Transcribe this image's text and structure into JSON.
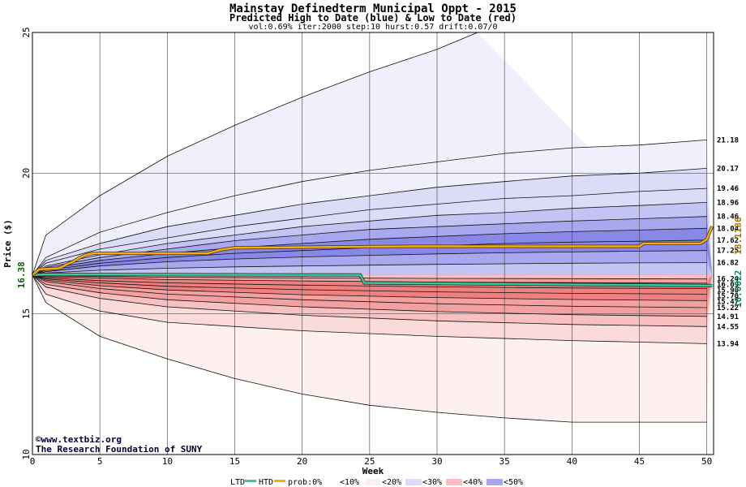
{
  "header": {
    "title": "Mainstay Definedterm Municipal Oppt - 2015",
    "subtitle": "Predicted High to Date (blue) &  Low to Date (red)",
    "params": "vol:0.69% iter:2000 step:10 hurst:0.57 drift:0.07/0"
  },
  "watermark": {
    "line1": "©www.textbiz.org",
    "line2": "The Research Foundation of SUNY"
  },
  "colors": {
    "htd": "#33cc99",
    "ltd": "#ffaa00",
    "ltd_outline": "#333333",
    "blue_band_10": "#f0f0fc",
    "blue_band_20": "#dcdcf8",
    "blue_band_30": "#c4c4f4",
    "blue_band_40": "#a8a8ee",
    "blue_band_50": "#8888e6",
    "red_band_10": "#fdf0ee",
    "red_band_20": "#fbdada",
    "red_band_30": "#f8c0c0",
    "red_band_40": "#f4a0a0",
    "red_band_50": "#ee8080",
    "start_label": "#006600",
    "ltd_label": "#aa7700",
    "htd_label": "#008866"
  },
  "chart_data": {
    "type": "area",
    "title": "Mainstay Definedterm Municipal Oppt - 2015",
    "xlabel": "Week",
    "ylabel": "Price ($)",
    "xlim": [
      0,
      50.5
    ],
    "ylim": [
      10,
      25
    ],
    "x_ticks": [
      0,
      5,
      10,
      15,
      20,
      25,
      30,
      35,
      40,
      45,
      50
    ],
    "y_ticks": [
      10,
      15,
      20,
      25
    ],
    "start_price": 16.38,
    "start_label": "16.38",
    "grid": true,
    "legend_position": "bottom",
    "legend": {
      "ltd": "LTD",
      "htd": "HTD",
      "prob": "prob:0%",
      "b10": "<10%",
      "b20": "<20%",
      "b30": "<30%",
      "b40": "<40%",
      "b50": "<50%"
    },
    "blue_contours": [
      {
        "end": 25.0,
        "p": [
          [
            1,
            17.8
          ],
          [
            5,
            19.2
          ],
          [
            10,
            20.6
          ],
          [
            15,
            21.7
          ],
          [
            20,
            22.7
          ],
          [
            25,
            23.6
          ],
          [
            30,
            24.4
          ],
          [
            33,
            25.0
          ]
        ]
      },
      {
        "end": 21.18,
        "p": [
          [
            1,
            17.0
          ],
          [
            5,
            17.9
          ],
          [
            10,
            18.6
          ],
          [
            15,
            19.2
          ],
          [
            20,
            19.7
          ],
          [
            25,
            20.1
          ],
          [
            30,
            20.4
          ],
          [
            35,
            20.7
          ],
          [
            40,
            20.9
          ],
          [
            45,
            21.0
          ],
          [
            50,
            21.18
          ]
        ]
      },
      {
        "end": 20.17,
        "p": [
          [
            1,
            16.9
          ],
          [
            5,
            17.5
          ],
          [
            10,
            18.1
          ],
          [
            15,
            18.5
          ],
          [
            20,
            18.9
          ],
          [
            25,
            19.2
          ],
          [
            30,
            19.5
          ],
          [
            35,
            19.7
          ],
          [
            40,
            19.9
          ],
          [
            45,
            20.0
          ],
          [
            50,
            20.17
          ]
        ]
      },
      {
        "end": 19.46,
        "p": [
          [
            1,
            16.8
          ],
          [
            5,
            17.3
          ],
          [
            10,
            17.7
          ],
          [
            15,
            18.1
          ],
          [
            20,
            18.4
          ],
          [
            25,
            18.7
          ],
          [
            30,
            18.9
          ],
          [
            35,
            19.1
          ],
          [
            40,
            19.2
          ],
          [
            45,
            19.35
          ],
          [
            50,
            19.46
          ]
        ]
      },
      {
        "end": 18.96,
        "p": [
          [
            1,
            16.7
          ],
          [
            5,
            17.1
          ],
          [
            10,
            17.5
          ],
          [
            15,
            17.8
          ],
          [
            20,
            18.1
          ],
          [
            25,
            18.3
          ],
          [
            30,
            18.5
          ],
          [
            35,
            18.6
          ],
          [
            40,
            18.75
          ],
          [
            45,
            18.85
          ],
          [
            50,
            18.96
          ]
        ]
      },
      {
        "end": 18.46,
        "p": [
          [
            1,
            16.65
          ],
          [
            5,
            17.0
          ],
          [
            10,
            17.3
          ],
          [
            15,
            17.6
          ],
          [
            20,
            17.8
          ],
          [
            25,
            18.0
          ],
          [
            30,
            18.1
          ],
          [
            35,
            18.2
          ],
          [
            40,
            18.3
          ],
          [
            45,
            18.38
          ],
          [
            50,
            18.46
          ]
        ]
      },
      {
        "end": 18.04,
        "p": [
          [
            1,
            16.6
          ],
          [
            5,
            16.9
          ],
          [
            10,
            17.15
          ],
          [
            15,
            17.35
          ],
          [
            20,
            17.5
          ],
          [
            25,
            17.65
          ],
          [
            30,
            17.75
          ],
          [
            35,
            17.85
          ],
          [
            40,
            17.92
          ],
          [
            45,
            17.98
          ],
          [
            50,
            18.04
          ]
        ]
      },
      {
        "end": 17.62,
        "p": [
          [
            1,
            16.55
          ],
          [
            5,
            16.8
          ],
          [
            10,
            17.0
          ],
          [
            15,
            17.15
          ],
          [
            20,
            17.25
          ],
          [
            25,
            17.35
          ],
          [
            30,
            17.42
          ],
          [
            35,
            17.5
          ],
          [
            40,
            17.55
          ],
          [
            45,
            17.58
          ],
          [
            50,
            17.62
          ]
        ]
      },
      {
        "end": 17.25,
        "p": [
          [
            1,
            16.5
          ],
          [
            5,
            16.7
          ],
          [
            10,
            16.85
          ],
          [
            15,
            16.95
          ],
          [
            20,
            17.02
          ],
          [
            25,
            17.08
          ],
          [
            30,
            17.13
          ],
          [
            35,
            17.17
          ],
          [
            40,
            17.2
          ],
          [
            45,
            17.23
          ],
          [
            50,
            17.25
          ]
        ]
      },
      {
        "end": 16.82,
        "p": [
          [
            1,
            16.45
          ],
          [
            5,
            16.55
          ],
          [
            10,
            16.62
          ],
          [
            15,
            16.67
          ],
          [
            20,
            16.7
          ],
          [
            25,
            16.73
          ],
          [
            30,
            16.76
          ],
          [
            35,
            16.78
          ],
          [
            40,
            16.8
          ],
          [
            45,
            16.81
          ],
          [
            50,
            16.82
          ]
        ]
      }
    ],
    "red_contours": [
      {
        "end": 16.24,
        "p": [
          [
            1,
            16.35
          ],
          [
            10,
            16.3
          ],
          [
            20,
            16.28
          ],
          [
            30,
            16.26
          ],
          [
            40,
            16.25
          ],
          [
            50,
            16.24
          ]
        ]
      },
      {
        "end": 16.09,
        "p": [
          [
            1,
            16.32
          ],
          [
            10,
            16.22
          ],
          [
            20,
            16.17
          ],
          [
            30,
            16.13
          ],
          [
            40,
            16.11
          ],
          [
            50,
            16.09
          ]
        ]
      },
      {
        "end": 15.9,
        "p": [
          [
            1,
            16.28
          ],
          [
            5,
            16.18
          ],
          [
            10,
            16.1
          ],
          [
            20,
            16.02
          ],
          [
            30,
            15.96
          ],
          [
            40,
            15.92
          ],
          [
            50,
            15.9
          ]
        ]
      },
      {
        "end": 15.7,
        "p": [
          [
            1,
            16.24
          ],
          [
            5,
            16.1
          ],
          [
            10,
            15.98
          ],
          [
            20,
            15.86
          ],
          [
            30,
            15.78
          ],
          [
            40,
            15.73
          ],
          [
            50,
            15.7
          ]
        ]
      },
      {
        "end": 15.47,
        "p": [
          [
            1,
            16.2
          ],
          [
            5,
            16.0
          ],
          [
            10,
            15.85
          ],
          [
            20,
            15.68
          ],
          [
            30,
            15.58
          ],
          [
            40,
            15.51
          ],
          [
            50,
            15.47
          ]
        ]
      },
      {
        "end": 15.22,
        "p": [
          [
            1,
            16.15
          ],
          [
            5,
            15.9
          ],
          [
            10,
            15.7
          ],
          [
            20,
            15.5
          ],
          [
            30,
            15.36
          ],
          [
            40,
            15.27
          ],
          [
            50,
            15.22
          ]
        ]
      },
      {
        "end": 14.91,
        "p": [
          [
            1,
            16.05
          ],
          [
            5,
            15.75
          ],
          [
            10,
            15.5
          ],
          [
            20,
            15.25
          ],
          [
            30,
            15.08
          ],
          [
            40,
            14.97
          ],
          [
            50,
            14.91
          ]
        ]
      },
      {
        "end": 14.55,
        "p": [
          [
            1,
            15.95
          ],
          [
            5,
            15.55
          ],
          [
            10,
            15.25
          ],
          [
            20,
            14.95
          ],
          [
            30,
            14.75
          ],
          [
            40,
            14.62
          ],
          [
            50,
            14.55
          ]
        ]
      },
      {
        "end": 13.94,
        "p": [
          [
            1,
            15.7
          ],
          [
            5,
            15.1
          ],
          [
            10,
            14.7
          ],
          [
            20,
            14.4
          ],
          [
            30,
            14.2
          ],
          [
            40,
            14.05
          ],
          [
            50,
            13.94
          ]
        ]
      },
      {
        "end": 11.15,
        "p": [
          [
            1,
            15.4
          ],
          [
            5,
            14.2
          ],
          [
            10,
            13.4
          ],
          [
            15,
            12.7
          ],
          [
            20,
            12.15
          ],
          [
            25,
            11.75
          ],
          [
            30,
            11.5
          ],
          [
            35,
            11.3
          ],
          [
            40,
            11.15
          ],
          [
            50,
            11.15
          ]
        ]
      }
    ],
    "right_labels": [
      "21.18",
      "20.17",
      "19.46",
      "18.96",
      "18.46",
      "18.04",
      "17.62",
      "17.25",
      "16.82",
      "16.24",
      "16.09",
      "15.90",
      "15.70",
      "15.47",
      "15.22",
      "14.91",
      "14.55",
      "13.94"
    ],
    "ltd": {
      "label": "18.1186",
      "value": 18.1186,
      "p": [
        [
          0,
          16.38
        ],
        [
          0.5,
          16.58
        ],
        [
          2,
          16.62
        ],
        [
          2.5,
          16.75
        ],
        [
          3,
          16.85
        ],
        [
          3.5,
          17.0
        ],
        [
          4,
          17.1
        ],
        [
          4.5,
          17.15
        ],
        [
          13,
          17.15
        ],
        [
          14,
          17.28
        ],
        [
          15,
          17.35
        ],
        [
          28,
          17.4
        ],
        [
          45,
          17.4
        ],
        [
          45.3,
          17.5
        ],
        [
          49.5,
          17.5
        ],
        [
          50,
          17.65
        ],
        [
          50.4,
          18.1186
        ]
      ]
    },
    "htd": {
      "label": "16.0022",
      "value": 16.0022,
      "p": [
        [
          0,
          16.38
        ],
        [
          1,
          16.4
        ],
        [
          24.3,
          16.38
        ],
        [
          24.6,
          16.1
        ],
        [
          50.4,
          16.0022
        ]
      ]
    }
  }
}
